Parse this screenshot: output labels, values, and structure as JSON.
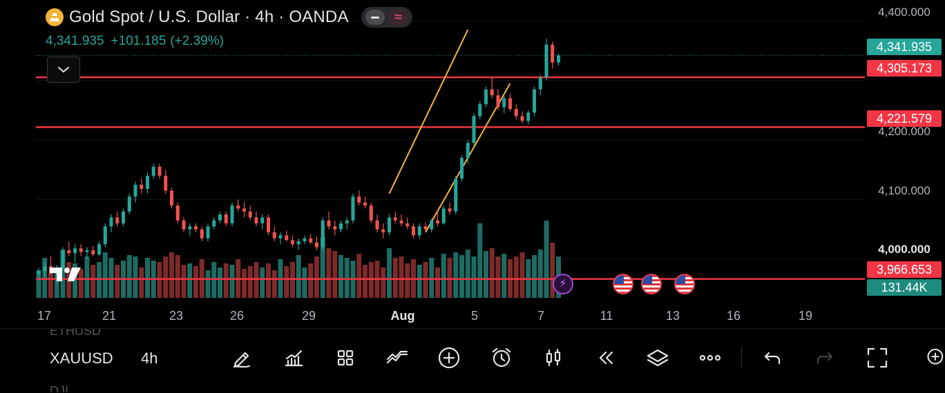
{
  "header": {
    "title": "Gold Spot / U.S. Dollar · 4h · OANDA",
    "price": "4,341.935",
    "change": "+101.185",
    "change_pct": "(+2.39%)"
  },
  "price_axis": {
    "labels": [
      "4,400.000",
      "4,200.000",
      "4,100.000",
      "4,000.000"
    ],
    "tags": {
      "last": "4,341.935",
      "line1": "4,305.173",
      "line2": "4,221.579",
      "line3": "3,966.653",
      "volume": "131.44K"
    }
  },
  "time_axis": [
    "17",
    "21",
    "23",
    "26",
    "29",
    "Aug",
    "5",
    "7",
    "11",
    "13",
    "16",
    "19"
  ],
  "colors": {
    "up": "#26a69a",
    "down": "#ef5350",
    "hline": "#f23645",
    "channel": "#f5b642",
    "background": "#000000"
  },
  "chart_data": {
    "type": "candlestick",
    "symbol": "XAUUSD",
    "interval": "4h",
    "ylim": [
      3935,
      4435
    ],
    "hlines": [
      4305.173,
      4221.579,
      3966.653
    ],
    "channel_lines": [
      [
        [
          58,
          4110
        ],
        [
          71,
          4385
        ]
      ],
      [
        [
          64,
          4045
        ],
        [
          78,
          4295
        ]
      ]
    ],
    "candles": [
      [
        3975,
        3985,
        3965,
        3980
      ],
      [
        3980,
        3995,
        3970,
        3988
      ],
      [
        3988,
        4005,
        3975,
        3975
      ],
      [
        3975,
        3990,
        3960,
        3985
      ],
      [
        3985,
        4020,
        3980,
        4015
      ],
      [
        4015,
        4030,
        4005,
        4010
      ],
      [
        4010,
        4025,
        3995,
        4018
      ],
      [
        4018,
        4025,
        4005,
        4012
      ],
      [
        4012,
        4020,
        4000,
        4015
      ],
      [
        4015,
        4022,
        4005,
        4008
      ],
      [
        4008,
        4030,
        4005,
        4025
      ],
      [
        4025,
        4060,
        4020,
        4055
      ],
      [
        4055,
        4075,
        4045,
        4070
      ],
      [
        4070,
        4080,
        4055,
        4060
      ],
      [
        4060,
        4085,
        4055,
        4080
      ],
      [
        4080,
        4110,
        4075,
        4105
      ],
      [
        4105,
        4130,
        4095,
        4125
      ],
      [
        4125,
        4135,
        4110,
        4118
      ],
      [
        4118,
        4145,
        4110,
        4140
      ],
      [
        4140,
        4160,
        4135,
        4155
      ],
      [
        4155,
        4160,
        4135,
        4140
      ],
      [
        4140,
        4150,
        4110,
        4115
      ],
      [
        4115,
        4120,
        4085,
        4090
      ],
      [
        4090,
        4095,
        4060,
        4065
      ],
      [
        4065,
        4070,
        4045,
        4050
      ],
      [
        4050,
        4060,
        4040,
        4055
      ],
      [
        4055,
        4060,
        4045,
        4050
      ],
      [
        4050,
        4055,
        4030,
        4035
      ],
      [
        4035,
        4060,
        4030,
        4055
      ],
      [
        4055,
        4070,
        4050,
        4065
      ],
      [
        4065,
        4080,
        4060,
        4075
      ],
      [
        4075,
        4080,
        4055,
        4060
      ],
      [
        4060,
        4095,
        4055,
        4090
      ],
      [
        4090,
        4100,
        4080,
        4085
      ],
      [
        4085,
        4095,
        4070,
        4080
      ],
      [
        4080,
        4090,
        4065,
        4070
      ],
      [
        4070,
        4080,
        4055,
        4060
      ],
      [
        4060,
        4075,
        4050,
        4070
      ],
      [
        4070,
        4075,
        4040,
        4045
      ],
      [
        4045,
        4055,
        4030,
        4035
      ],
      [
        4035,
        4045,
        4025,
        4040
      ],
      [
        4040,
        4048,
        4030,
        4032
      ],
      [
        4032,
        4040,
        4020,
        4025
      ],
      [
        4025,
        4035,
        4015,
        4030
      ],
      [
        4030,
        4040,
        4025,
        4035
      ],
      [
        4035,
        4042,
        4025,
        4028
      ],
      [
        4028,
        4038,
        4015,
        4020
      ],
      [
        4020,
        4070,
        4015,
        4065
      ],
      [
        4065,
        4080,
        4050,
        4055
      ],
      [
        4055,
        4065,
        4040,
        4050
      ],
      [
        4050,
        4065,
        4045,
        4060
      ],
      [
        4060,
        4070,
        4050,
        4065
      ],
      [
        4065,
        4110,
        4060,
        4105
      ],
      [
        4105,
        4115,
        4090,
        4095
      ],
      [
        4095,
        4105,
        4085,
        4090
      ],
      [
        4090,
        4095,
        4060,
        4065
      ],
      [
        4065,
        4075,
        4045,
        4050
      ],
      [
        4050,
        4060,
        4035,
        4045
      ],
      [
        4045,
        4075,
        4040,
        4070
      ],
      [
        4070,
        4080,
        4060,
        4065
      ],
      [
        4065,
        4075,
        4055,
        4060
      ],
      [
        4060,
        4070,
        4050,
        4055
      ],
      [
        4055,
        4060,
        4035,
        4040
      ],
      [
        4040,
        4060,
        4035,
        4055
      ],
      [
        4055,
        4062,
        4045,
        4050
      ],
      [
        4050,
        4068,
        4045,
        4065
      ],
      [
        4065,
        4080,
        4055,
        4060
      ],
      [
        4060,
        4090,
        4058,
        4085
      ],
      [
        4085,
        4095,
        4075,
        4080
      ],
      [
        4080,
        4140,
        4075,
        4135
      ],
      [
        4135,
        4175,
        4130,
        4170
      ],
      [
        4170,
        4200,
        4160,
        4195
      ],
      [
        4195,
        4245,
        4190,
        4240
      ],
      [
        4240,
        4265,
        4235,
        4260
      ],
      [
        4260,
        4290,
        4255,
        4285
      ],
      [
        4285,
        4305,
        4270,
        4275
      ],
      [
        4275,
        4285,
        4250,
        4255
      ],
      [
        4255,
        4275,
        4245,
        4270
      ],
      [
        4270,
        4278,
        4248,
        4252
      ],
      [
        4252,
        4260,
        4235,
        4240
      ],
      [
        4240,
        4248,
        4228,
        4232
      ],
      [
        4232,
        4250,
        4226,
        4246
      ],
      [
        4246,
        4290,
        4240,
        4285
      ],
      [
        4285,
        4310,
        4275,
        4305
      ],
      [
        4305,
        4370,
        4300,
        4360
      ],
      [
        4360,
        4365,
        4320,
        4330
      ],
      [
        4330,
        4345,
        4325,
        4342
      ]
    ],
    "volume": [
      40,
      58,
      36,
      44,
      70,
      52,
      50,
      42,
      60,
      48,
      52,
      66,
      58,
      48,
      54,
      62,
      60,
      44,
      58,
      54,
      52,
      60,
      66,
      62,
      48,
      50,
      46,
      56,
      40,
      52,
      44,
      50,
      48,
      56,
      42,
      46,
      52,
      44,
      50,
      40,
      56,
      46,
      52,
      62,
      44,
      50,
      60,
      88,
      72,
      68,
      62,
      58,
      54,
      64,
      48,
      52,
      54,
      44,
      72,
      58,
      60,
      50,
      56,
      48,
      52,
      58,
      44,
      64,
      58,
      66,
      62,
      70,
      60,
      108,
      68,
      72,
      60,
      64,
      56,
      60,
      66,
      56,
      62,
      70,
      112,
      80,
      60
    ]
  },
  "events": [
    "lightning-event",
    "us-event",
    "us-event",
    "us-event"
  ],
  "toolbar": {
    "symbol_prev": "ETHUSD",
    "symbol": "XAUUSD",
    "interval": "4h",
    "symbol_next": "DJI"
  }
}
